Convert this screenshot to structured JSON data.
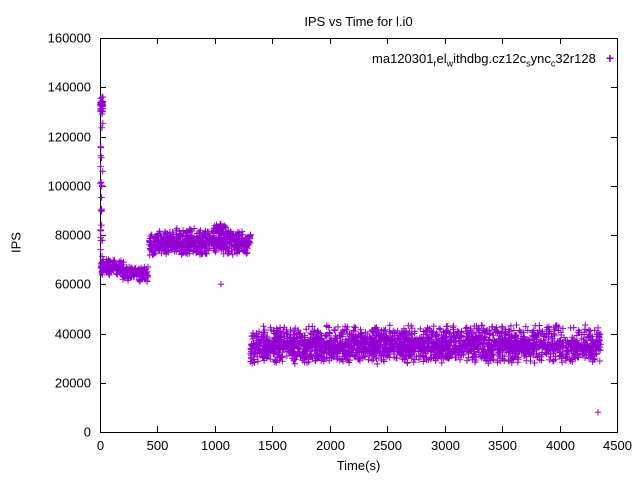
{
  "title": "IPS vs Time for l.i0",
  "x_label": "Time(s)",
  "y_label": "IPS",
  "legend": {
    "name_plain": "ma120301_rel_withdbg.cz12c_sync_c32r128",
    "parts": [
      {
        "t": "ma120301"
      },
      {
        "t": "r",
        "sub": true
      },
      {
        "t": "el"
      },
      {
        "t": "w",
        "sub": true
      },
      {
        "t": "ithdbg.cz12c"
      },
      {
        "t": "s",
        "sub": true
      },
      {
        "t": "ync"
      },
      {
        "t": "c",
        "sub": true
      },
      {
        "t": "32r128"
      }
    ],
    "marker": "+"
  },
  "colors": {
    "points": "#9400d3",
    "axis": "#000000",
    "background": "#ffffff"
  },
  "chart_data": {
    "type": "scatter",
    "marker": "plus",
    "title": "IPS vs Time for l.i0",
    "xlabel": "Time(s)",
    "ylabel": "IPS",
    "xlim": [
      0,
      4500
    ],
    "ylim": [
      0,
      160000
    ],
    "xticks": [
      0,
      500,
      1000,
      1500,
      2000,
      2500,
      3000,
      3500,
      4000,
      4500
    ],
    "yticks": [
      0,
      20000,
      40000,
      60000,
      80000,
      100000,
      120000,
      140000,
      160000
    ],
    "grid": false,
    "legend_position": "top-right-inside",
    "series_name": "ma120301_rel_withdbg.cz12c_sync_c32r128",
    "seed": 1337,
    "segments": [
      {
        "note": "startup vertical spike",
        "x_range": [
          2,
          28
        ],
        "y_range": [
          66000,
          128000
        ],
        "count": 28,
        "dist": "uniform"
      },
      {
        "note": "startup top blob ~137k",
        "x_range": [
          2,
          30
        ],
        "y_range": [
          128000,
          138000
        ],
        "count": 35,
        "dist": "center"
      },
      {
        "note": "early band ~65-70k",
        "x_range": [
          8,
          210
        ],
        "y_range": [
          63000,
          70500
        ],
        "count": 130,
        "dist": "center"
      },
      {
        "note": "early band dip ~62-66k",
        "x_range": [
          200,
          425
        ],
        "y_range": [
          60800,
          67500
        ],
        "count": 130,
        "dist": "center"
      },
      {
        "note": "mid plateau ~78k",
        "x_range": [
          430,
          1310
        ],
        "y_range": [
          71500,
          83000
        ],
        "count": 620,
        "dist": "center"
      },
      {
        "note": "mid plateau peak blips",
        "x_range": [
          980,
          1120
        ],
        "y_range": [
          80000,
          85000
        ],
        "count": 30,
        "dist": "center"
      },
      {
        "note": "long steady band ~33k",
        "x_range": [
          1310,
          4360
        ],
        "y_range": [
          27500,
          42500
        ],
        "count": 2300,
        "dist": "center"
      },
      {
        "note": "long band top fringe",
        "x_range": [
          1350,
          4350
        ],
        "y_range": [
          40000,
          43500
        ],
        "count": 120,
        "dist": "uniform"
      }
    ],
    "outliers": [
      [
        1052,
        60000
      ],
      [
        4335,
        8000
      ]
    ]
  }
}
